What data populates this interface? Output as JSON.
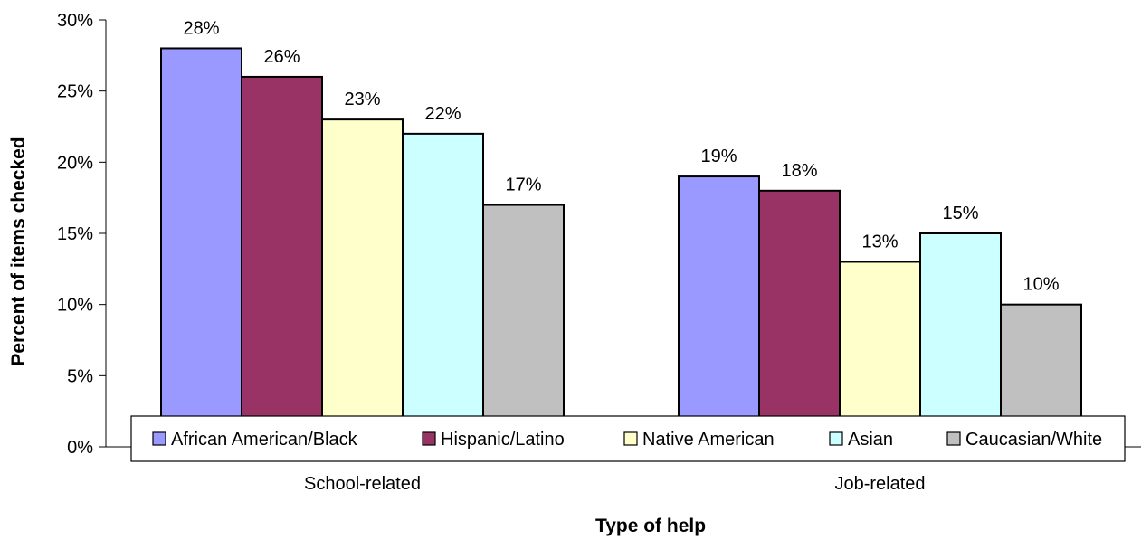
{
  "chart_data": {
    "type": "bar",
    "title": "",
    "xlabel": "Type of help",
    "ylabel": "Percent of items checked",
    "categories": [
      "School-related",
      "Job-related"
    ],
    "series": [
      {
        "name": "African American/Black",
        "color": "#9999ff",
        "values": [
          28,
          19
        ],
        "labels": [
          "28%",
          "19%"
        ]
      },
      {
        "name": "Hispanic/Latino",
        "color": "#993366",
        "values": [
          26,
          18
        ],
        "labels": [
          "26%",
          "18%"
        ]
      },
      {
        "name": "Native American",
        "color": "#ffffcc",
        "values": [
          23,
          13
        ],
        "labels": [
          "23%",
          "13%"
        ]
      },
      {
        "name": "Asian",
        "color": "#ccffff",
        "values": [
          22,
          15
        ],
        "labels": [
          "22%",
          "15%"
        ]
      },
      {
        "name": "Caucasian/White",
        "color": "#c0c0c0",
        "values": [
          17,
          10
        ],
        "labels": [
          "17%",
          "10%"
        ]
      }
    ],
    "ylim": [
      0,
      30
    ],
    "yticks": [
      "0%",
      "5%",
      "10%",
      "15%",
      "20%",
      "25%",
      "30%"
    ],
    "legend_position": "bottom-inside",
    "grid": false
  }
}
